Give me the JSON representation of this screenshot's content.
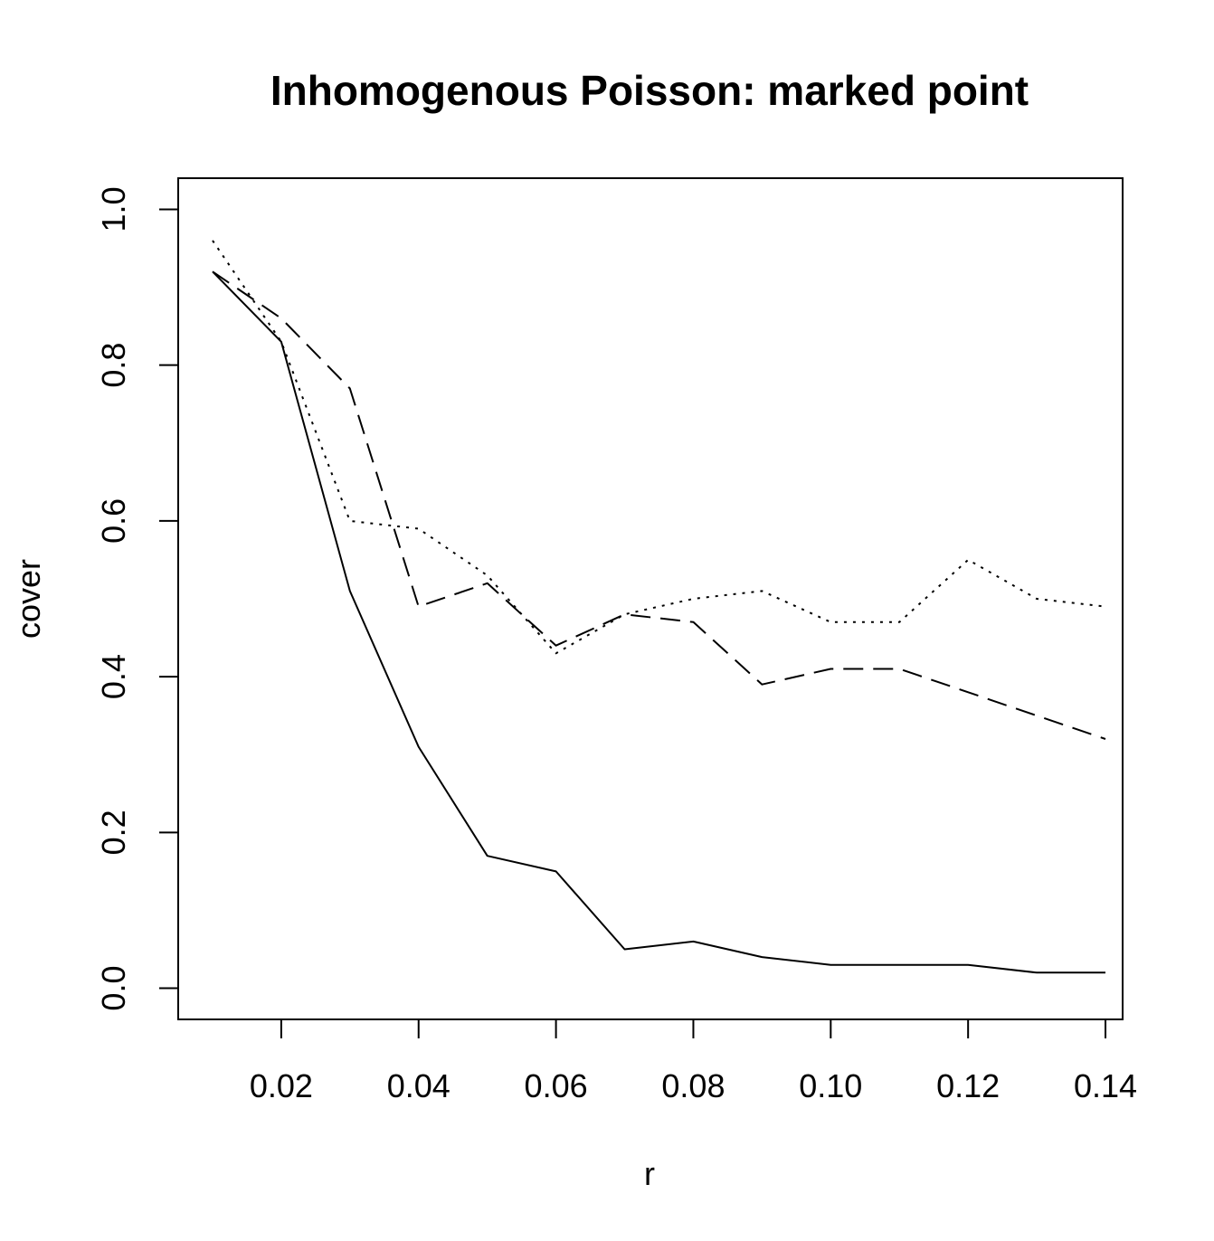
{
  "chart_data": {
    "type": "line",
    "title": "Inhomogenous Poisson: marked point",
    "xlabel": "r",
    "ylabel": "cover",
    "xlim": [
      0.005,
      0.1425
    ],
    "ylim": [
      -0.04,
      1.04
    ],
    "x_ticks": [
      0.02,
      0.04,
      0.06,
      0.08,
      0.1,
      0.12,
      0.14
    ],
    "x_tick_labels": [
      "0.02",
      "0.04",
      "0.06",
      "0.08",
      "0.10",
      "0.12",
      "0.14"
    ],
    "y_ticks": [
      0.0,
      0.2,
      0.4,
      0.6,
      0.8,
      1.0
    ],
    "y_tick_labels": [
      "0.0",
      "0.2",
      "0.4",
      "0.6",
      "0.8",
      "1.0"
    ],
    "grid": false,
    "legend": "none",
    "x": [
      0.01,
      0.02,
      0.03,
      0.04,
      0.05,
      0.06,
      0.07,
      0.08,
      0.09,
      0.1,
      0.11,
      0.12,
      0.13,
      0.14
    ],
    "series": [
      {
        "line_style": "solid",
        "color": "#000000",
        "values": [
          0.92,
          0.83,
          0.51,
          0.31,
          0.17,
          0.15,
          0.05,
          0.06,
          0.04,
          0.03,
          0.03,
          0.03,
          0.02,
          0.02
        ]
      },
      {
        "line_style": "dashed",
        "color": "#000000",
        "values": [
          0.92,
          0.86,
          0.77,
          0.49,
          0.52,
          0.44,
          0.48,
          0.47,
          0.39,
          0.41,
          0.41,
          0.38,
          0.35,
          0.32
        ]
      },
      {
        "line_style": "dotted",
        "color": "#000000",
        "values": [
          0.96,
          0.83,
          0.6,
          0.59,
          0.53,
          0.43,
          0.48,
          0.5,
          0.51,
          0.47,
          0.47,
          0.55,
          0.5,
          0.49
        ]
      }
    ]
  }
}
